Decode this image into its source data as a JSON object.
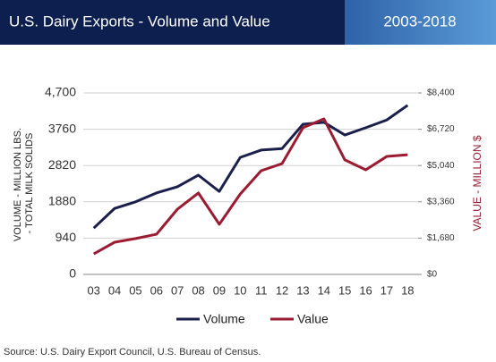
{
  "chart_data": {
    "type": "line",
    "title": "U.S. Dairy Exports - Volume and Value",
    "subtitle": "2003-2018",
    "y_label": [
      "VOLUME - MILLION LBS.",
      "- TOTAL MILK SOLIDS"
    ],
    "y2_label": "VALUE - MILLION $",
    "source": "Source: U.S. Dairy Export Council, U.S. Bureau of Census.",
    "categories": [
      "03",
      "04",
      "05",
      "06",
      "07",
      "08",
      "09",
      "10",
      "11",
      "12",
      "13",
      "14",
      "15",
      "16",
      "17",
      "18"
    ],
    "series": [
      {
        "name": "Volume",
        "color": "#1b1f4b",
        "values": [
          1200,
          1710,
          1880,
          2110,
          2270,
          2570,
          2150,
          3030,
          3220,
          3260,
          3890,
          3940,
          3610,
          3800,
          4000,
          4380
        ]
      },
      {
        "name": "Value",
        "color": "#9b1b30",
        "axis": "y2",
        "values": [
          950,
          1490,
          1660,
          1860,
          3020,
          3770,
          2320,
          3720,
          4800,
          5130,
          6790,
          7200,
          5300,
          4840,
          5460,
          5540
        ]
      }
    ],
    "ylim": [
      0,
      4700
    ],
    "yticks": [
      0,
      940,
      1880,
      2820,
      3760,
      {
        "value": 4700,
        "label": "4,700"
      }
    ],
    "y2lim": [
      0,
      8400
    ],
    "y2ticks": [
      {
        "value": 0,
        "label": "$0"
      },
      {
        "value": 1680,
        "label": "$1,680"
      },
      {
        "value": 3360,
        "label": "$3,360"
      },
      {
        "value": 5040,
        "label": "$5,040"
      },
      {
        "value": 6720,
        "label": "$6,720"
      },
      {
        "value": 8400,
        "label": "$8,400"
      }
    ],
    "grid": true,
    "legend": "bottom"
  }
}
